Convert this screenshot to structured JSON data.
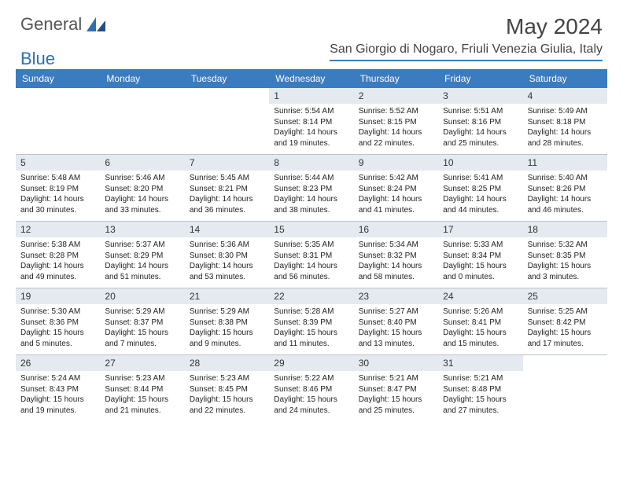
{
  "brand": {
    "name": "General",
    "accent": "Blue"
  },
  "title": "May 2024",
  "location": "San Giorgio di Nogaro, Friuli Venezia Giulia, Italy",
  "colors": {
    "header_bg": "#3b7bbf",
    "daynum_bg": "#e4eaef",
    "rule": "#b9c4cf",
    "text": "#222222",
    "title_text": "#444444"
  },
  "dow": [
    "Sunday",
    "Monday",
    "Tuesday",
    "Wednesday",
    "Thursday",
    "Friday",
    "Saturday"
  ],
  "weeks": [
    [
      null,
      null,
      null,
      {
        "n": "1",
        "sr": "5:54 AM",
        "ss": "8:14 PM",
        "dl": "14 hours and 19 minutes."
      },
      {
        "n": "2",
        "sr": "5:52 AM",
        "ss": "8:15 PM",
        "dl": "14 hours and 22 minutes."
      },
      {
        "n": "3",
        "sr": "5:51 AM",
        "ss": "8:16 PM",
        "dl": "14 hours and 25 minutes."
      },
      {
        "n": "4",
        "sr": "5:49 AM",
        "ss": "8:18 PM",
        "dl": "14 hours and 28 minutes."
      }
    ],
    [
      {
        "n": "5",
        "sr": "5:48 AM",
        "ss": "8:19 PM",
        "dl": "14 hours and 30 minutes."
      },
      {
        "n": "6",
        "sr": "5:46 AM",
        "ss": "8:20 PM",
        "dl": "14 hours and 33 minutes."
      },
      {
        "n": "7",
        "sr": "5:45 AM",
        "ss": "8:21 PM",
        "dl": "14 hours and 36 minutes."
      },
      {
        "n": "8",
        "sr": "5:44 AM",
        "ss": "8:23 PM",
        "dl": "14 hours and 38 minutes."
      },
      {
        "n": "9",
        "sr": "5:42 AM",
        "ss": "8:24 PM",
        "dl": "14 hours and 41 minutes."
      },
      {
        "n": "10",
        "sr": "5:41 AM",
        "ss": "8:25 PM",
        "dl": "14 hours and 44 minutes."
      },
      {
        "n": "11",
        "sr": "5:40 AM",
        "ss": "8:26 PM",
        "dl": "14 hours and 46 minutes."
      }
    ],
    [
      {
        "n": "12",
        "sr": "5:38 AM",
        "ss": "8:28 PM",
        "dl": "14 hours and 49 minutes."
      },
      {
        "n": "13",
        "sr": "5:37 AM",
        "ss": "8:29 PM",
        "dl": "14 hours and 51 minutes."
      },
      {
        "n": "14",
        "sr": "5:36 AM",
        "ss": "8:30 PM",
        "dl": "14 hours and 53 minutes."
      },
      {
        "n": "15",
        "sr": "5:35 AM",
        "ss": "8:31 PM",
        "dl": "14 hours and 56 minutes."
      },
      {
        "n": "16",
        "sr": "5:34 AM",
        "ss": "8:32 PM",
        "dl": "14 hours and 58 minutes."
      },
      {
        "n": "17",
        "sr": "5:33 AM",
        "ss": "8:34 PM",
        "dl": "15 hours and 0 minutes."
      },
      {
        "n": "18",
        "sr": "5:32 AM",
        "ss": "8:35 PM",
        "dl": "15 hours and 3 minutes."
      }
    ],
    [
      {
        "n": "19",
        "sr": "5:30 AM",
        "ss": "8:36 PM",
        "dl": "15 hours and 5 minutes."
      },
      {
        "n": "20",
        "sr": "5:29 AM",
        "ss": "8:37 PM",
        "dl": "15 hours and 7 minutes."
      },
      {
        "n": "21",
        "sr": "5:29 AM",
        "ss": "8:38 PM",
        "dl": "15 hours and 9 minutes."
      },
      {
        "n": "22",
        "sr": "5:28 AM",
        "ss": "8:39 PM",
        "dl": "15 hours and 11 minutes."
      },
      {
        "n": "23",
        "sr": "5:27 AM",
        "ss": "8:40 PM",
        "dl": "15 hours and 13 minutes."
      },
      {
        "n": "24",
        "sr": "5:26 AM",
        "ss": "8:41 PM",
        "dl": "15 hours and 15 minutes."
      },
      {
        "n": "25",
        "sr": "5:25 AM",
        "ss": "8:42 PM",
        "dl": "15 hours and 17 minutes."
      }
    ],
    [
      {
        "n": "26",
        "sr": "5:24 AM",
        "ss": "8:43 PM",
        "dl": "15 hours and 19 minutes."
      },
      {
        "n": "27",
        "sr": "5:23 AM",
        "ss": "8:44 PM",
        "dl": "15 hours and 21 minutes."
      },
      {
        "n": "28",
        "sr": "5:23 AM",
        "ss": "8:45 PM",
        "dl": "15 hours and 22 minutes."
      },
      {
        "n": "29",
        "sr": "5:22 AM",
        "ss": "8:46 PM",
        "dl": "15 hours and 24 minutes."
      },
      {
        "n": "30",
        "sr": "5:21 AM",
        "ss": "8:47 PM",
        "dl": "15 hours and 25 minutes."
      },
      {
        "n": "31",
        "sr": "5:21 AM",
        "ss": "8:48 PM",
        "dl": "15 hours and 27 minutes."
      },
      null
    ]
  ],
  "labels": {
    "sunrise": "Sunrise:",
    "sunset": "Sunset:",
    "daylight": "Daylight:"
  }
}
